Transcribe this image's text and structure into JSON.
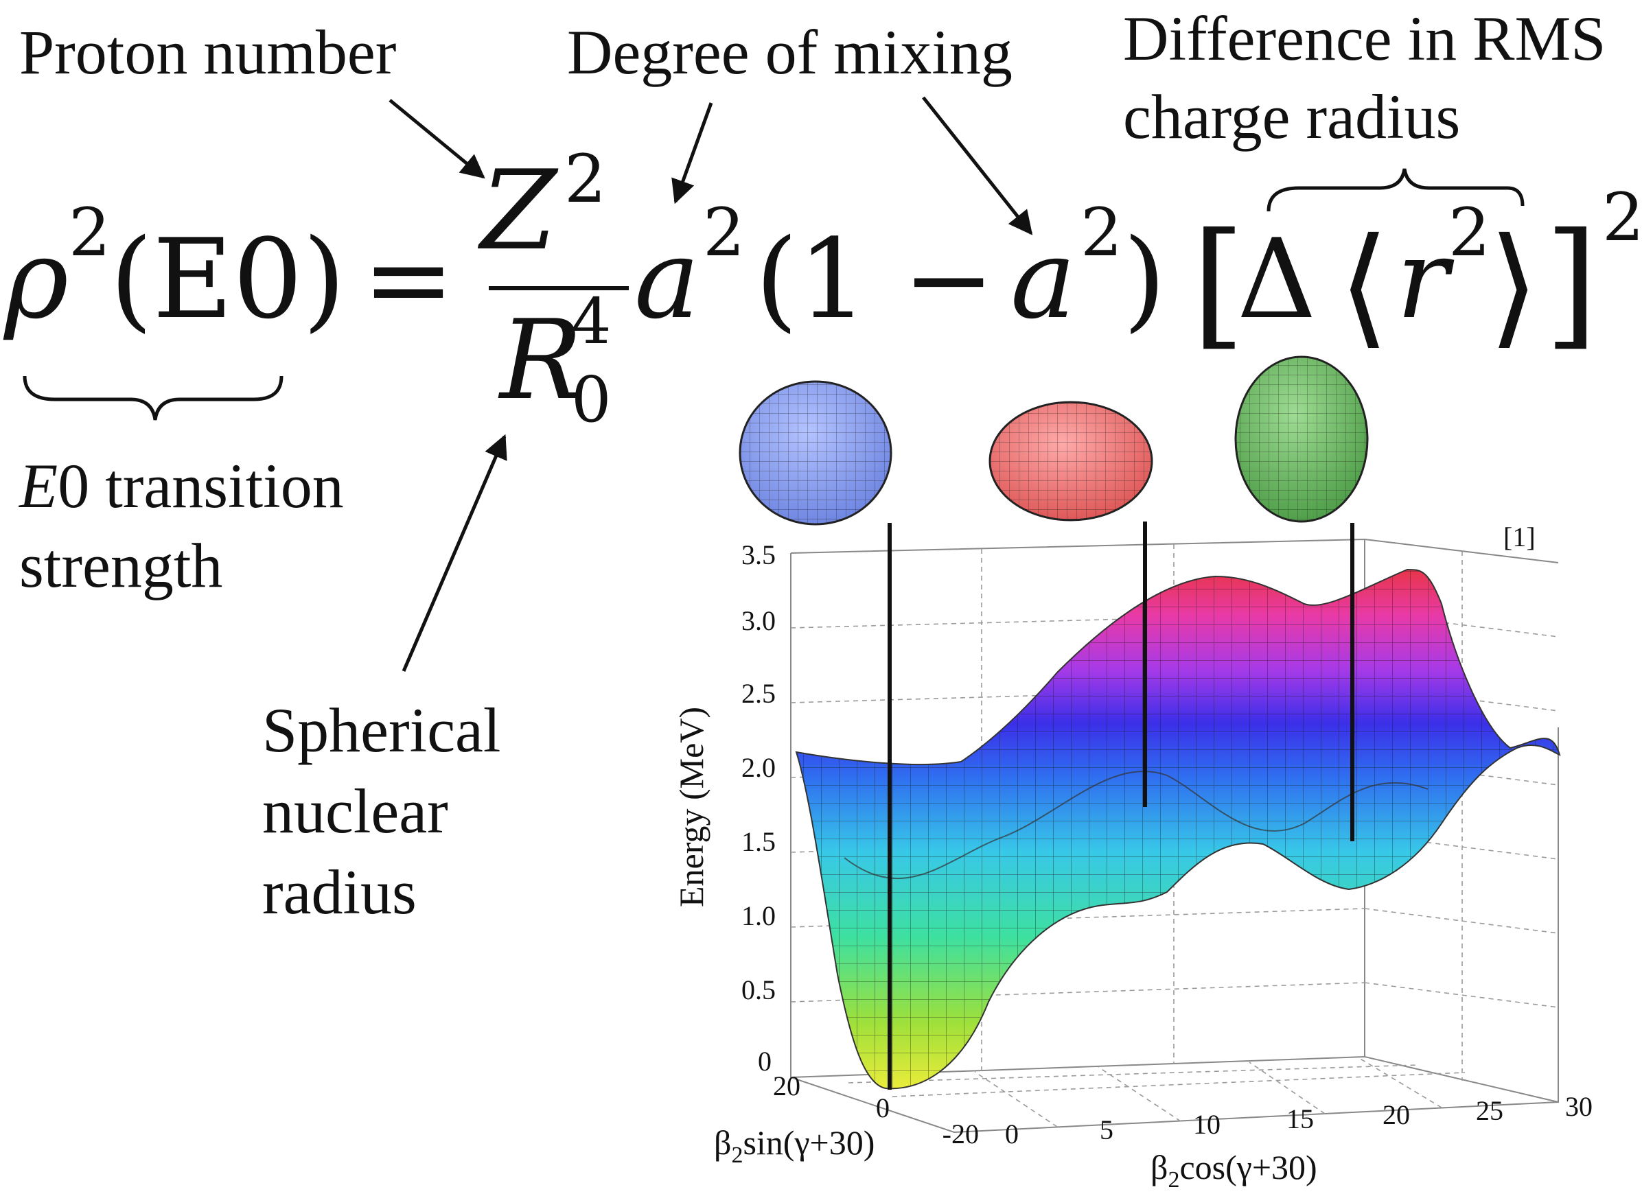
{
  "annotations": {
    "proton_number": "Proton number",
    "degree_of_mixing": "Degree of mixing",
    "rms_line1": "Difference in RMS",
    "rms_line2": "charge radius",
    "e0_italic": "E",
    "e0_rest": "0 transition",
    "e0_line2": "strength",
    "spherical_line1": "Spherical",
    "spherical_line2": "nuclear",
    "spherical_line3": "radius"
  },
  "equation": {
    "lhs_symbol": "ρ",
    "lhs_exponent": "2",
    "lhs_arg": "(E0)",
    "equals": "=",
    "numerator": "Z",
    "numerator_exp": "2",
    "denominator": "R",
    "denominator_sub": "0",
    "denominator_sup": "4",
    "mix_a": "a",
    "mix_exp": "2",
    "paren_term": "(1 − ",
    "paren_a": "a",
    "paren_exp": "2",
    "paren_close": ")",
    "bracket_open": "[",
    "delta": "Δ",
    "angle_open": "⟨",
    "r": "r",
    "r_exp": "2",
    "angle_close": "⟩",
    "bracket_close": "]",
    "outer_exp": "2"
  },
  "figure": {
    "reference": "[1]",
    "z_label": "Energy (MeV)",
    "z_ticks": [
      "0",
      "0.5",
      "1.0",
      "1.5",
      "2.0",
      "2.5",
      "3.0",
      "3.5"
    ],
    "x_label_prefix": "β",
    "x_label_sub": "2",
    "x_label_suffix": "cos(γ+30)",
    "x_ticks": [
      "0",
      "5",
      "10",
      "15",
      "20",
      "25",
      "30"
    ],
    "y_label_prefix": "β",
    "y_label_sub": "2",
    "y_label_suffix": "sin(γ+30)",
    "y_ticks": [
      "20",
      "0",
      "-20"
    ],
    "shapes": [
      {
        "name": "spherical",
        "color": "#7f95e8"
      },
      {
        "name": "oblate",
        "color": "#e86a6a"
      },
      {
        "name": "prolate",
        "color": "#5fb05a"
      }
    ]
  }
}
